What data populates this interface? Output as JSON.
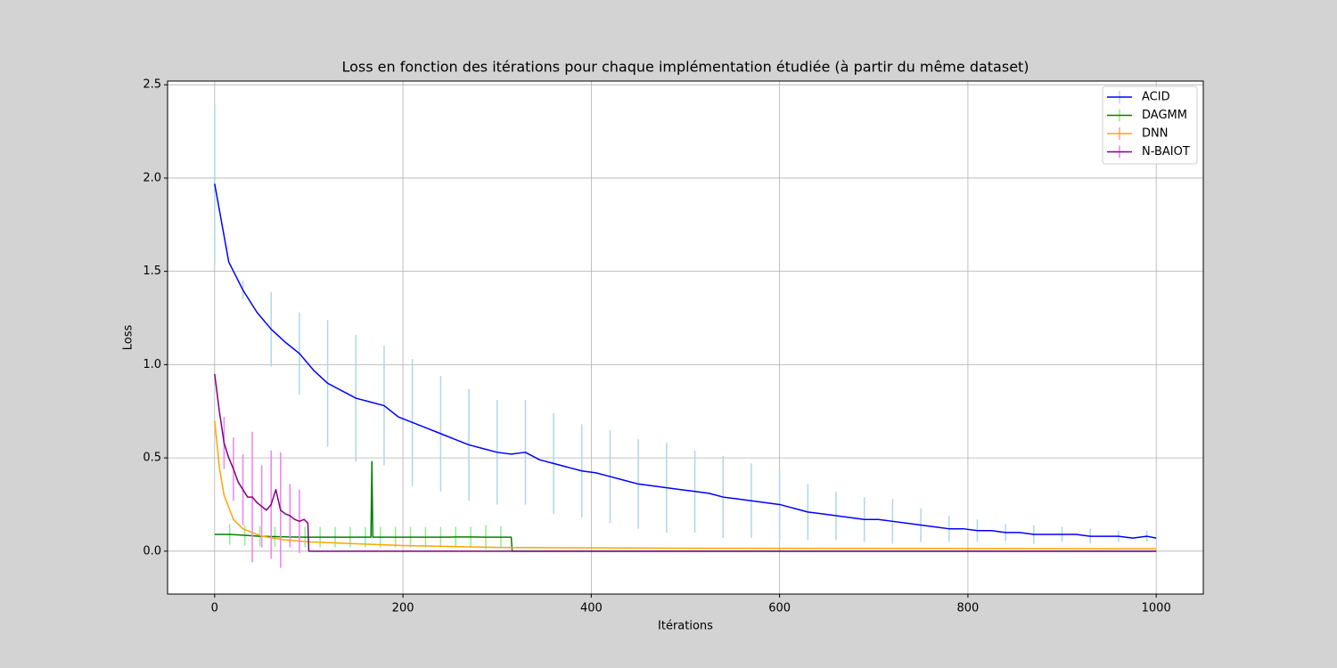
{
  "chart_data": {
    "type": "line",
    "title": "Loss en fonction des itérations pour chaque implémentation étudiée (à partir du même dataset)",
    "x_label": "Itérations",
    "y_label": "Loss",
    "xlim": [
      -50,
      1050
    ],
    "ylim": [
      -0.23,
      2.52
    ],
    "xticks": [
      0,
      200,
      400,
      600,
      800,
      1000
    ],
    "yticks": [
      {
        "value": 0,
        "label": "0.0"
      },
      0.5,
      {
        "value": 1,
        "label": "1.0"
      },
      1.5,
      {
        "value": 2,
        "label": "2.0"
      },
      2.5
    ],
    "grid": true,
    "legend": "upper right",
    "series": [
      {
        "name": "ACID",
        "color": "#0000ff",
        "error_color": "#add8e6",
        "x": [
          0,
          15,
          30,
          45,
          60,
          75,
          90,
          105,
          120,
          135,
          150,
          165,
          180,
          195,
          210,
          225,
          240,
          255,
          270,
          285,
          300,
          315,
          330,
          345,
          360,
          375,
          390,
          405,
          420,
          435,
          450,
          465,
          480,
          495,
          510,
          525,
          540,
          555,
          570,
          585,
          600,
          615,
          630,
          645,
          660,
          675,
          690,
          705,
          720,
          735,
          750,
          765,
          780,
          795,
          810,
          825,
          840,
          855,
          870,
          885,
          900,
          915,
          930,
          945,
          960,
          975,
          990,
          1000
        ],
        "values": [
          1.97,
          1.55,
          1.4,
          1.28,
          1.19,
          1.12,
          1.06,
          0.97,
          0.9,
          0.86,
          0.82,
          0.8,
          0.78,
          0.72,
          0.69,
          0.66,
          0.63,
          0.6,
          0.57,
          0.55,
          0.53,
          0.52,
          0.53,
          0.49,
          0.47,
          0.45,
          0.43,
          0.42,
          0.4,
          0.38,
          0.36,
          0.35,
          0.34,
          0.33,
          0.32,
          0.31,
          0.29,
          0.28,
          0.27,
          0.26,
          0.25,
          0.23,
          0.21,
          0.2,
          0.19,
          0.18,
          0.17,
          0.17,
          0.16,
          0.15,
          0.14,
          0.13,
          0.12,
          0.12,
          0.11,
          0.11,
          0.1,
          0.1,
          0.09,
          0.09,
          0.09,
          0.09,
          0.08,
          0.08,
          0.08,
          0.07,
          0.08,
          0.07
        ],
        "errors": [
          0.43,
          null,
          0.05,
          null,
          0.2,
          null,
          0.22,
          null,
          0.34,
          null,
          0.34,
          null,
          0.32,
          null,
          0.34,
          null,
          0.31,
          null,
          0.3,
          null,
          0.28,
          null,
          0.28,
          null,
          0.27,
          null,
          0.25,
          null,
          0.25,
          null,
          0.24,
          null,
          0.24,
          null,
          0.22,
          null,
          0.22,
          null,
          0.2,
          null,
          0.19,
          null,
          0.15,
          null,
          0.13,
          null,
          0.12,
          null,
          0.12,
          null,
          0.09,
          null,
          0.07,
          null,
          0.06,
          null,
          0.045,
          null,
          0.05,
          null,
          0.04,
          null,
          0.04,
          null,
          0.03,
          null,
          0.03,
          null
        ]
      },
      {
        "name": "DAGMM",
        "color": "#008000",
        "error_color": "#90ee90",
        "x": [
          0,
          16,
          32,
          48,
          64,
          80,
          96,
          112,
          128,
          144,
          160,
          166,
          167,
          168,
          176,
          192,
          208,
          224,
          240,
          256,
          272,
          288,
          304,
          315,
          316,
          1000
        ],
        "values": [
          0.09,
          0.09,
          0.085,
          0.08,
          0.078,
          0.076,
          0.075,
          0.075,
          0.075,
          0.075,
          0.075,
          0.075,
          0.48,
          0.075,
          0.075,
          0.075,
          0.075,
          0.075,
          0.075,
          0.076,
          0.076,
          0.075,
          0.075,
          0.075,
          0,
          0
        ],
        "errors": [
          null,
          0.055,
          0.055,
          0.055,
          0.055,
          0.055,
          0.055,
          0.055,
          0.055,
          0.055,
          0.055,
          null,
          null,
          null,
          0.055,
          0.055,
          0.055,
          0.055,
          0.055,
          0.055,
          0.055,
          0.065,
          0.06,
          null,
          null,
          null
        ]
      },
      {
        "name": "DNN",
        "color": "#ffa500",
        "error_color": "#ffa07a",
        "x": [
          0,
          5,
          10,
          20,
          30,
          50,
          75,
          100,
          150,
          200,
          300,
          500,
          1000
        ],
        "values": [
          0.7,
          0.45,
          0.3,
          0.17,
          0.12,
          0.08,
          0.06,
          0.05,
          0.04,
          0.03,
          0.02,
          0.016,
          0.013
        ]
      },
      {
        "name": "N-BAIOT",
        "color": "#800080",
        "error_color": "#ee82ee",
        "x": [
          0,
          5,
          10,
          15,
          20,
          25,
          30,
          35,
          40,
          45,
          50,
          55,
          60,
          65,
          70,
          75,
          80,
          85,
          90,
          95,
          99,
          100,
          1000
        ],
        "values": [
          0.95,
          0.75,
          0.58,
          0.5,
          0.44,
          0.37,
          0.33,
          0.29,
          0.29,
          0.26,
          0.24,
          0.22,
          0.25,
          0.33,
          0.22,
          0.2,
          0.19,
          0.17,
          0.16,
          0.17,
          0.15,
          0,
          0
        ],
        "errors": [
          null,
          null,
          0.14,
          null,
          0.17,
          null,
          0.19,
          null,
          0.35,
          null,
          0.22,
          null,
          0.29,
          null,
          0.31,
          null,
          0.17,
          null,
          0.17,
          null,
          null,
          null,
          null
        ]
      }
    ]
  }
}
